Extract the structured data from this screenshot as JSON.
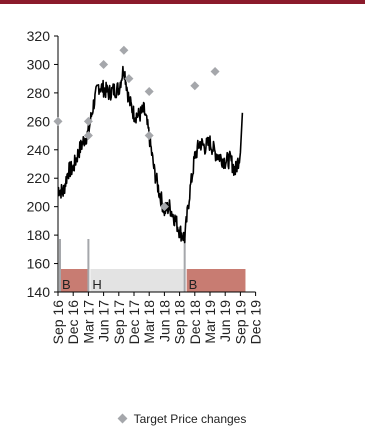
{
  "chart_data": {
    "type": "line",
    "ylim": [
      140,
      320
    ],
    "yticks": [
      140,
      160,
      180,
      200,
      220,
      240,
      260,
      280,
      300,
      320
    ],
    "xticks": [
      "Sep 16",
      "Dec 16",
      "Mar 17",
      "Jun 17",
      "Sep 17",
      "Dec 17",
      "Mar 18",
      "Jun 18",
      "Sep 18",
      "Dec 18",
      "Mar 19",
      "Jun 19",
      "Sep 19",
      "Dec 19"
    ],
    "series": [
      {
        "kind": "price",
        "x": [
          "Sep 16",
          "Oct 16",
          "Nov 16",
          "Dec 16",
          "Jan 17",
          "Feb 17",
          "Mar 17",
          "Apr 17",
          "May 17",
          "Jun 17",
          "Jul 17",
          "Aug 17",
          "Sep 17",
          "Oct 17",
          "Nov 17",
          "Dec 17",
          "Jan 18",
          "Feb 18",
          "Mar 18",
          "Apr 18",
          "May 18",
          "Jun 18",
          "Jul 18",
          "Aug 18",
          "Sep 18",
          "Oct 18",
          "Nov 18",
          "Dec 18",
          "Jan 19",
          "Feb 19",
          "Mar 19",
          "Apr 19",
          "May 19",
          "Jun 19",
          "Jul 19",
          "Aug 19",
          "Sep 19"
        ],
        "values": [
          213,
          210,
          225,
          227,
          238,
          246,
          252,
          272,
          285,
          283,
          280,
          282,
          283,
          298,
          275,
          265,
          264,
          268,
          250,
          225,
          210,
          197,
          200,
          192,
          183,
          178,
          210,
          235,
          245,
          242,
          245,
          238,
          235,
          232,
          233,
          225,
          238
        ]
      },
      {
        "name": "Target Price changes",
        "kind": "target",
        "x": [
          "Sep 16",
          "Mar 17",
          "Mar 17",
          "Jun 17",
          "Oct 17",
          "Nov 17",
          "Mar 18",
          "Mar 18",
          "Jun 18",
          "Dec 18",
          "Apr 19"
        ],
        "values": [
          260,
          250,
          260,
          300,
          310,
          290,
          281,
          250,
          200,
          285,
          295
        ]
      }
    ],
    "recommendation_bands": [
      {
        "label": "B",
        "start": "Sep 16",
        "end": "Mar 17",
        "color": "#c87c72"
      },
      {
        "label": "H",
        "start": "Mar 17",
        "end": "Oct 18",
        "color": "#e3e3e3"
      },
      {
        "label": "B",
        "start": "Oct 18",
        "end": "Oct 19",
        "color": "#c87c72"
      }
    ],
    "colors": {
      "price": "#000000",
      "marker": "#a5a7ab",
      "axis": "#000000",
      "band_divider": "#a5a7ab"
    }
  },
  "legend": {
    "label": "Target Price changes"
  }
}
